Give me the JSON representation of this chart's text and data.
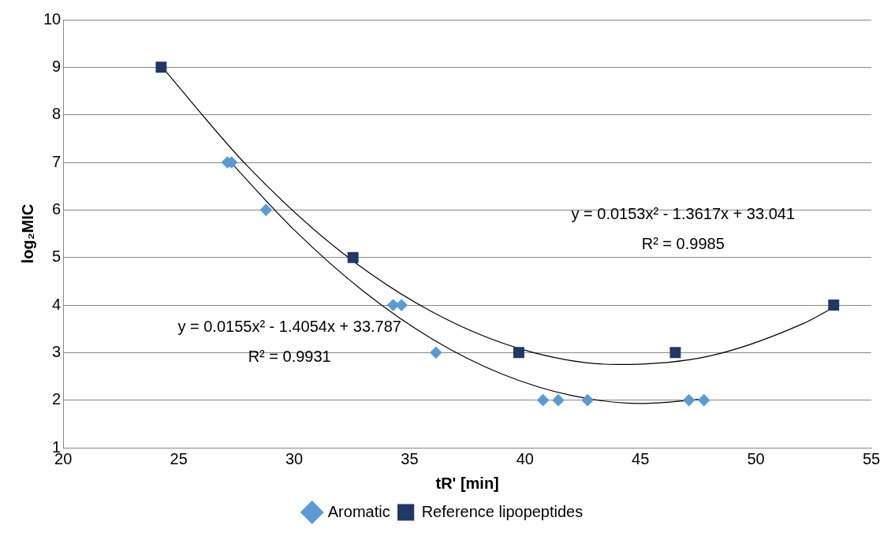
{
  "chart_data": {
    "type": "scatter",
    "xlabel": "tR' [min]",
    "ylabel": "log₂MIC",
    "xlim": [
      20,
      55
    ],
    "xticks": [
      20,
      25,
      30,
      35,
      40,
      45,
      50,
      55
    ],
    "ylim": [
      1,
      10
    ],
    "yticks": [
      1,
      2,
      3,
      4,
      5,
      6,
      7,
      8,
      9,
      10
    ],
    "grid": "y",
    "legend": "bottom",
    "series": [
      {
        "name": "Aromatic",
        "color": "#5b9bd5",
        "marker": "diamond",
        "x": [
          27.11,
          27.29,
          28.78,
          34.29,
          34.65,
          36.14,
          40.78,
          41.44,
          42.71,
          47.1,
          47.75
        ],
        "values": [
          7,
          7,
          6,
          4,
          4,
          3,
          2,
          2,
          2,
          2,
          2
        ]
      },
      {
        "name": "Reference lipopeptides",
        "color": "#1f3864",
        "marker": "square",
        "x": [
          24.24,
          32.55,
          39.73,
          46.51,
          53.37
        ],
        "values": [
          9,
          5,
          3,
          3,
          4
        ]
      },
      {
        "type": "line",
        "color": "#000000",
        "marker": "none",
        "x": [
          27.1,
          30,
          33,
          36,
          39,
          42,
          45,
          47.75
        ],
        "values": [
          7.08,
          5.58,
          4.29,
          3.28,
          2.55,
          2.1,
          1.93,
          2.02
        ]
      },
      {
        "type": "line",
        "color": "#000000",
        "marker": "none",
        "x": [
          24.25,
          28,
          32,
          36,
          40,
          44,
          48,
          52,
          53.4
        ],
        "values": [
          9.02,
          6.91,
          5.13,
          3.85,
          3.05,
          2.75,
          2.93,
          3.6,
          3.96
        ]
      }
    ],
    "annotations": [
      "y = 0.0153x² - 1.3617x + 33.041",
      "R² = 0.9985",
      "y = 0.0155x² - 1.4054x + 33.787",
      "R² = 0.9931"
    ]
  }
}
